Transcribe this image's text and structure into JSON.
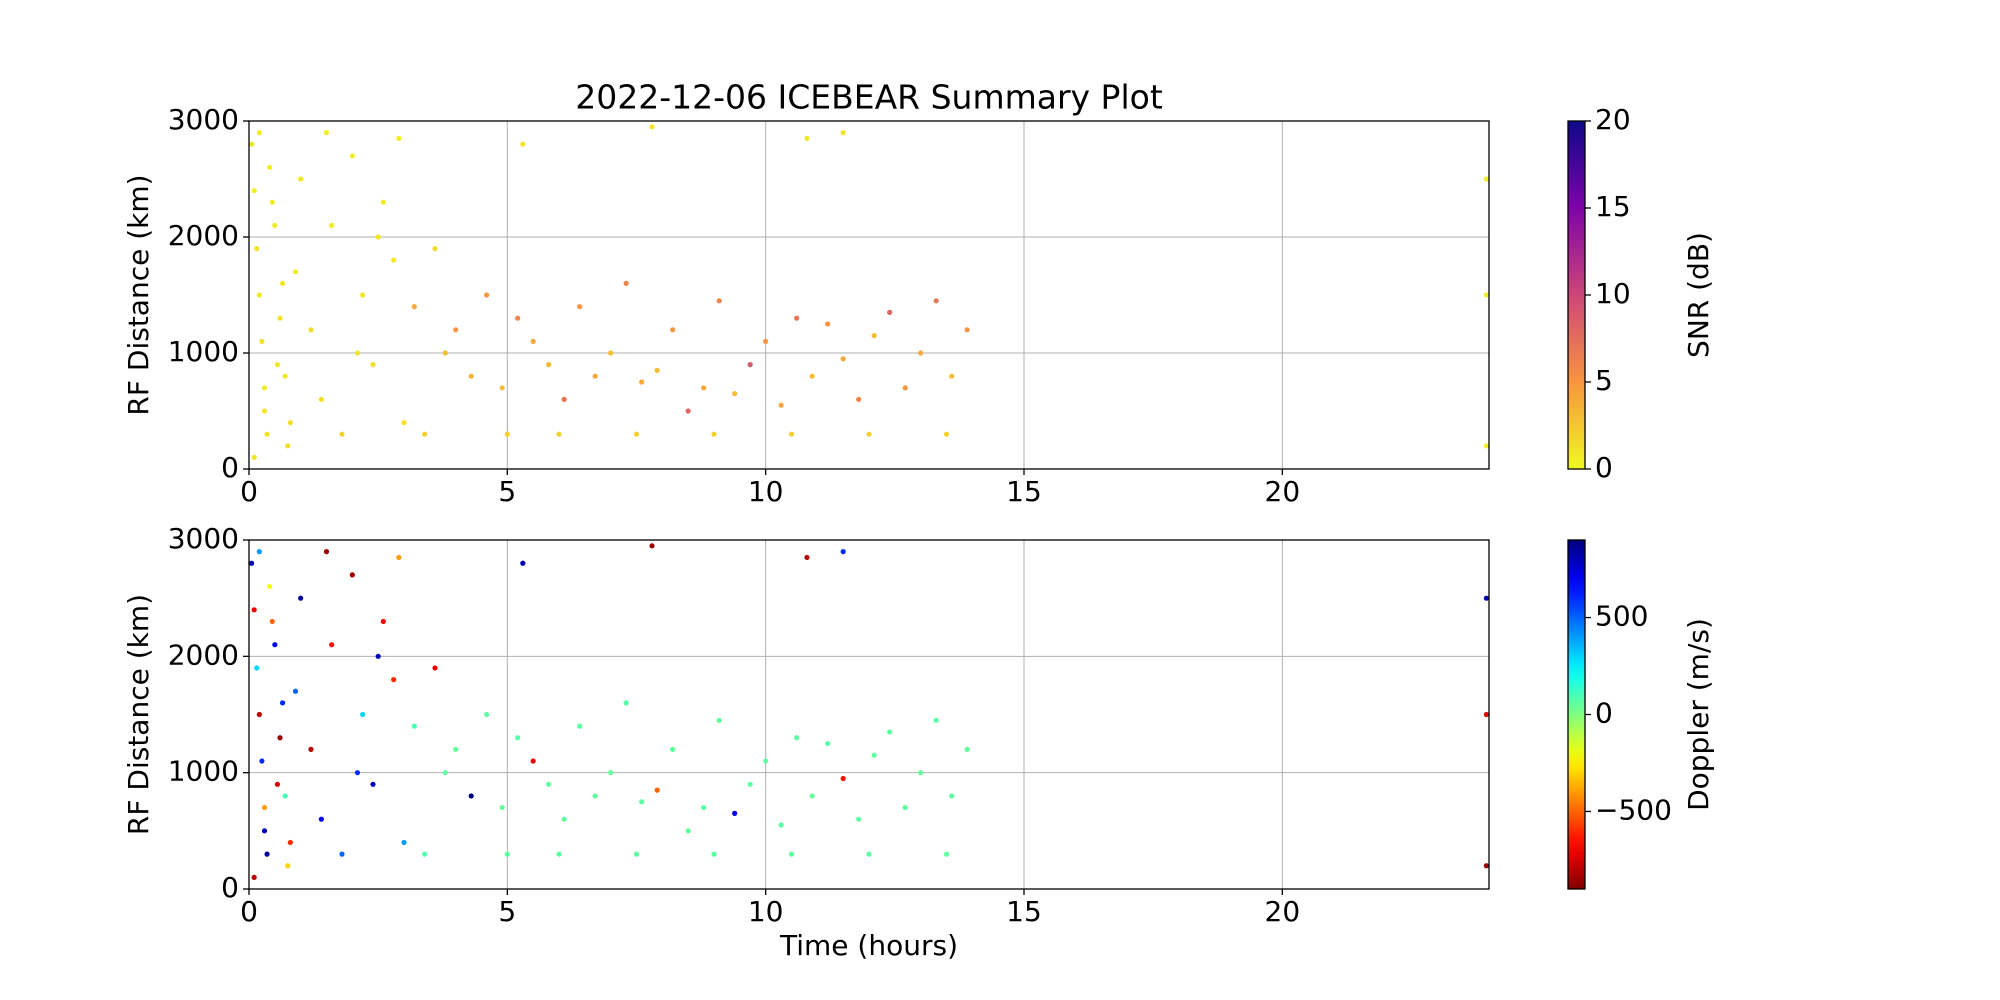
{
  "chart_data": [
    {
      "type": "scatter",
      "title": "2022-12-06 ICEBEAR Summary Plot",
      "ylabel": "RF Distance (km)",
      "xlim": [
        0,
        24
      ],
      "xticks": [
        0,
        5,
        10,
        15,
        20
      ],
      "ylim": [
        0,
        3000
      ],
      "yticks": [
        0,
        1000,
        2000,
        3000
      ],
      "grid": true,
      "x": [
        0.05,
        0.1,
        0.15,
        0.2,
        0.25,
        0.3,
        0.35,
        0.4,
        0.5,
        0.6,
        0.7,
        0.8,
        0.9,
        0.1,
        0.2,
        0.3,
        0.45,
        0.55,
        0.65,
        0.75,
        1.0,
        1.2,
        1.4,
        1.6,
        1.8,
        2.0,
        2.2,
        2.4,
        2.6,
        2.8,
        3.0,
        1.5,
        2.1,
        2.5,
        2.9,
        3.2,
        3.4,
        3.6,
        3.8,
        4.0,
        4.3,
        4.6,
        4.9,
        5.2,
        5.5,
        5.8,
        6.1,
        6.4,
        6.7,
        7.0,
        7.3,
        7.6,
        7.9,
        8.2,
        8.5,
        8.8,
        9.1,
        9.4,
        9.7,
        10.0,
        10.3,
        10.6,
        10.9,
        11.2,
        11.5,
        11.8,
        12.1,
        12.4,
        12.7,
        13.0,
        13.3,
        13.6,
        13.9,
        5.0,
        6.0,
        7.5,
        9.0,
        10.5,
        12.0,
        13.5,
        23.95,
        23.95,
        23.95,
        7.8,
        10.8,
        11.5,
        5.3
      ],
      "y": [
        2800,
        2400,
        1900,
        1500,
        1100,
        700,
        300,
        2600,
        2100,
        1300,
        800,
        400,
        1700,
        100,
        2900,
        500,
        2300,
        900,
        1600,
        200,
        2500,
        1200,
        600,
        2100,
        300,
        2700,
        1500,
        900,
        2300,
        1800,
        400,
        2900,
        1000,
        2000,
        2850,
        1400,
        300,
        1900,
        1000,
        1200,
        800,
        1500,
        700,
        1300,
        1100,
        900,
        600,
        1400,
        800,
        1000,
        1600,
        750,
        850,
        1200,
        500,
        700,
        1450,
        650,
        900,
        1100,
        550,
        1300,
        800,
        1250,
        950,
        600,
        1150,
        1350,
        700,
        1000,
        1450,
        800,
        1200,
        300,
        300,
        300,
        300,
        300,
        300,
        300,
        2500,
        1500,
        200,
        2950,
        2850,
        2900,
        2800
      ],
      "c": [
        1,
        0.5,
        1,
        0.8,
        1.2,
        0.6,
        1,
        0.5,
        0.7,
        1.1,
        0.9,
        1.3,
        0.6,
        1,
        0.5,
        0.8,
        0.7,
        1,
        0.9,
        1.2,
        0.8,
        1.5,
        1.2,
        0.6,
        2,
        0.5,
        1,
        1.4,
        0.7,
        0.9,
        1.1,
        0.5,
        1,
        0.8,
        0.6,
        4,
        2,
        1.5,
        3,
        5,
        3.5,
        5,
        3,
        6,
        4,
        3,
        7,
        5,
        4,
        3,
        6,
        4,
        3,
        5,
        8,
        4,
        6,
        3,
        9,
        5,
        4,
        7,
        3,
        5,
        4,
        6,
        3,
        8,
        5,
        4,
        7,
        3,
        5,
        2,
        2,
        2,
        2,
        2,
        2,
        2,
        0.5,
        0.5,
        0.5,
        1,
        1,
        1,
        1
      ],
      "colorbar": {
        "label": "SNR (dB)",
        "colormap": "plasma_r",
        "clim": [
          0,
          20
        ],
        "ticks": [
          0,
          5,
          10,
          15,
          20
        ]
      }
    },
    {
      "type": "scatter",
      "ylabel": "RF Distance (km)",
      "xlabel": "Time (hours)",
      "xlim": [
        0,
        24
      ],
      "xticks": [
        0,
        5,
        10,
        15,
        20
      ],
      "ylim": [
        0,
        3000
      ],
      "yticks": [
        0,
        1000,
        2000,
        3000
      ],
      "grid": true,
      "x": [
        0.05,
        0.1,
        0.15,
        0.2,
        0.25,
        0.3,
        0.35,
        0.4,
        0.5,
        0.6,
        0.7,
        0.8,
        0.9,
        0.1,
        0.2,
        0.3,
        0.45,
        0.55,
        0.65,
        0.75,
        1.0,
        1.2,
        1.4,
        1.6,
        1.8,
        2.0,
        2.2,
        2.4,
        2.6,
        2.8,
        3.0,
        1.5,
        2.1,
        2.5,
        2.9,
        3.2,
        3.4,
        3.6,
        3.8,
        4.0,
        4.3,
        4.6,
        4.9,
        5.2,
        5.5,
        5.8,
        6.1,
        6.4,
        6.7,
        7.0,
        7.3,
        7.6,
        7.9,
        8.2,
        8.5,
        8.8,
        9.1,
        9.4,
        9.7,
        10.0,
        10.3,
        10.6,
        10.9,
        11.2,
        11.5,
        11.8,
        12.1,
        12.4,
        12.7,
        13.0,
        13.3,
        13.6,
        13.9,
        5.0,
        6.0,
        7.5,
        9.0,
        10.5,
        12.0,
        13.5,
        23.95,
        23.95,
        23.95,
        7.8,
        10.8,
        11.5,
        5.3
      ],
      "y": [
        2800,
        2400,
        1900,
        1500,
        1100,
        700,
        300,
        2600,
        2100,
        1300,
        800,
        400,
        1700,
        100,
        2900,
        500,
        2300,
        900,
        1600,
        200,
        2500,
        1200,
        600,
        2100,
        300,
        2700,
        1500,
        900,
        2300,
        1800,
        400,
        2900,
        1000,
        2000,
        2850,
        1400,
        300,
        1900,
        1000,
        1200,
        800,
        1500,
        700,
        1300,
        1100,
        900,
        600,
        1400,
        800,
        1000,
        1600,
        750,
        850,
        1200,
        500,
        700,
        1450,
        650,
        900,
        1100,
        550,
        1300,
        800,
        1250,
        950,
        600,
        1150,
        1350,
        700,
        1000,
        1450,
        800,
        1200,
        300,
        300,
        300,
        300,
        300,
        300,
        300,
        2500,
        1500,
        200,
        2950,
        2850,
        2900,
        2800
      ],
      "c": [
        800,
        -700,
        300,
        -800,
        600,
        -400,
        850,
        -200,
        700,
        -850,
        100,
        -600,
        500,
        -800,
        400,
        800,
        -500,
        -750,
        600,
        -300,
        850,
        -800,
        700,
        -650,
        500,
        -850,
        300,
        800,
        -700,
        -600,
        400,
        -850,
        600,
        800,
        -400,
        100,
        80,
        -700,
        60,
        50,
        900,
        60,
        50,
        70,
        -700,
        60,
        55,
        65,
        60,
        50,
        70,
        60,
        -500,
        60,
        55,
        65,
        60,
        700,
        60,
        55,
        65,
        60,
        50,
        70,
        -650,
        60,
        55,
        65,
        60,
        50,
        70,
        60,
        55,
        60,
        60,
        60,
        60,
        60,
        60,
        60,
        800,
        -700,
        -850,
        -850,
        -800,
        600,
        800
      ],
      "colorbar": {
        "label": "Doppler (m/s)",
        "colormap": "jet_r",
        "clim": [
          -900,
          900
        ],
        "ticks": [
          {
            "value": -500,
            "label": "−500"
          },
          0,
          500
        ]
      }
    }
  ]
}
